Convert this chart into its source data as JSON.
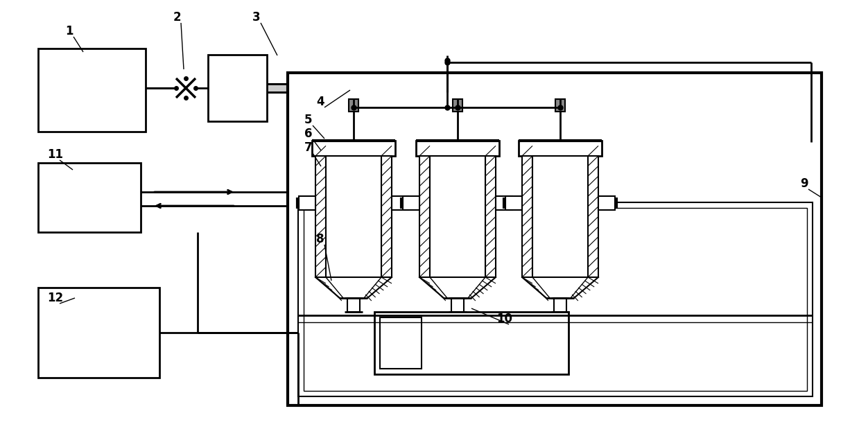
{
  "bg_color": "#ffffff",
  "line_color": "#000000",
  "label_fontsize": 12,
  "label_fontweight": "bold",
  "fig_width": 12.39,
  "fig_height": 6.45
}
